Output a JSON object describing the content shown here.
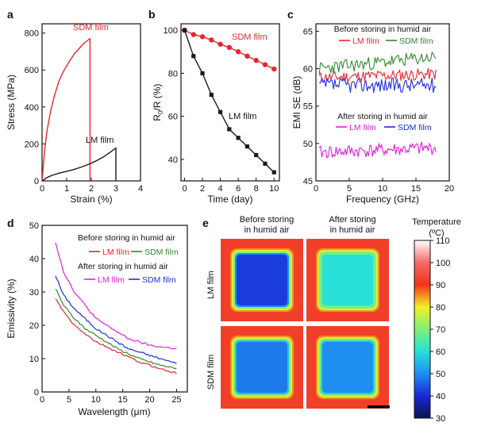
{
  "figure": {
    "panels": [
      "a",
      "b",
      "c",
      "d",
      "e"
    ]
  },
  "chart_data": [
    {
      "id": "a",
      "type": "line",
      "xlabel": "Strain (%)",
      "ylabel": "Stress (MPa)",
      "xlim": [
        0,
        4
      ],
      "ylim": [
        0,
        850
      ],
      "xticks": [
        0,
        1,
        2,
        3,
        4
      ],
      "yticks": [
        0,
        200,
        400,
        600,
        800
      ],
      "series": [
        {
          "name": "SDM film",
          "color": "#e8262b",
          "x": [
            0,
            0.1,
            0.2,
            0.35,
            0.5,
            0.7,
            0.9,
            1.1,
            1.3,
            1.5,
            1.7,
            1.85,
            1.95,
            1.95
          ],
          "y": [
            0,
            160,
            270,
            380,
            460,
            545,
            600,
            645,
            685,
            715,
            745,
            760,
            770,
            0
          ]
        },
        {
          "name": "LM film",
          "color": "#1a1a1a",
          "x": [
            0,
            0.2,
            0.4,
            0.7,
            1.0,
            1.3,
            1.6,
            1.9,
            2.2,
            2.5,
            2.8,
            3.0,
            3.0
          ],
          "y": [
            0,
            18,
            30,
            42,
            52,
            62,
            75,
            90,
            108,
            130,
            158,
            178,
            0
          ]
        }
      ]
    },
    {
      "id": "b",
      "type": "line",
      "xlabel": "Time (day)",
      "ylabel": "R0/R (%)",
      "ylabel_main": "R",
      "ylabel_sub": "0",
      "ylabel_rest": "/R (%)",
      "xlim": [
        -0.4,
        10.6
      ],
      "ylim": [
        30,
        103
      ],
      "xticks": [
        0,
        2,
        4,
        6,
        8,
        10
      ],
      "yticks": [
        40,
        60,
        80,
        100
      ],
      "series": [
        {
          "name": "SDM film",
          "color": "#e8262b",
          "marker": "circle",
          "x": [
            0,
            1,
            2,
            3,
            4,
            5,
            6,
            7,
            8,
            9,
            10
          ],
          "y": [
            100,
            98,
            97,
            95.5,
            93.5,
            92,
            90,
            88,
            86,
            84,
            82
          ]
        },
        {
          "name": "LM film",
          "color": "#1a1a1a",
          "marker": "square",
          "x": [
            0,
            1,
            2,
            3,
            4,
            5,
            6,
            7,
            8,
            9,
            10
          ],
          "y": [
            100,
            88,
            80,
            70,
            62,
            54,
            50,
            46,
            42,
            38,
            34
          ]
        }
      ]
    },
    {
      "id": "c",
      "type": "line",
      "xlabel": "Frequency (GHz)",
      "ylabel": "EMI SE (dB)",
      "xlim": [
        0,
        20
      ],
      "ylim": [
        45,
        66
      ],
      "xticks": [
        0,
        5,
        10,
        15,
        20
      ],
      "yticks": [
        45,
        50,
        55,
        60,
        65
      ],
      "annotations": [
        "Before storing in humid air",
        "After storing in humid air"
      ],
      "legend_before": [
        "LM film",
        "SDM film"
      ],
      "legend_after": [
        "LM film",
        "SDM film"
      ],
      "series": [
        {
          "name": "LM film",
          "group": "before",
          "color": "#e8262b",
          "mean": 58.8,
          "trend": 0.5,
          "noise": 0.8,
          "seed": 11
        },
        {
          "name": "SDM film",
          "group": "before",
          "color": "#2e8b2e",
          "mean": 60.0,
          "trend": 1.6,
          "noise": 0.9,
          "seed": 23
        },
        {
          "name": "SDM film",
          "group": "before",
          "color": "#1f2ee0",
          "mean": 57.8,
          "trend": 0.0,
          "noise": 1.0,
          "seed": 37
        },
        {
          "name": "LM film",
          "group": "after",
          "color": "#e020e0",
          "mean": 48.8,
          "trend": 0.6,
          "noise": 0.9,
          "seed": 41
        }
      ],
      "freq_range": [
        0.5,
        18
      ]
    },
    {
      "id": "d",
      "type": "line",
      "xlabel": "Wavelength (μm)",
      "ylabel": "Emissivity (%)",
      "xlim": [
        0,
        27
      ],
      "ylim": [
        0,
        50
      ],
      "xticks": [
        0,
        5,
        10,
        15,
        20,
        25
      ],
      "yticks": [
        0,
        10,
        20,
        30,
        40,
        50
      ],
      "annotations": [
        "Before storing in humid air",
        "After storing in humid air"
      ],
      "legend_before": [
        "LM film",
        "SDM film"
      ],
      "legend_after": [
        "LM film",
        "SDM film"
      ],
      "series": [
        {
          "name": "LM film",
          "group": "after",
          "color": "#e020e0",
          "x": [
            2.5,
            4,
            6,
            8,
            10,
            12,
            14,
            16,
            18,
            20,
            22,
            25
          ],
          "y": [
            45,
            36,
            30,
            26,
            22,
            20,
            18,
            16,
            15,
            14,
            13.5,
            13
          ]
        },
        {
          "name": "SDM film",
          "group": "after",
          "color": "#1f2ee0",
          "x": [
            2.5,
            4,
            6,
            8,
            10,
            12,
            14,
            16,
            18,
            20,
            22,
            25
          ],
          "y": [
            35,
            29,
            25,
            22,
            19,
            17,
            15,
            13,
            12,
            11,
            10,
            8.5
          ]
        },
        {
          "name": "SDM film",
          "group": "before",
          "color": "#2e8b2e",
          "x": [
            2.5,
            4,
            6,
            8,
            10,
            12,
            14,
            16,
            18,
            20,
            22,
            25
          ],
          "y": [
            31,
            26,
            22,
            19,
            17,
            15,
            13,
            11.5,
            10,
            9,
            8,
            7
          ]
        },
        {
          "name": "LM film",
          "group": "before",
          "color": "#e8262b",
          "x": [
            2.5,
            4,
            6,
            8,
            10,
            12,
            14,
            16,
            18,
            20,
            22,
            25
          ],
          "y": [
            28,
            24,
            20,
            17.5,
            15,
            13.5,
            12,
            10.5,
            9,
            8,
            7,
            5.5
          ]
        }
      ]
    },
    {
      "id": "e",
      "type": "heatmap",
      "column_labels": [
        "Before storing in humid air",
        "After storing in humid air"
      ],
      "row_labels": [
        "LM film",
        "SDM film"
      ],
      "colorbar_title": "Temperature (ºC)",
      "colorbar_range": [
        30,
        110
      ],
      "colorbar_ticks": [
        30,
        40,
        50,
        60,
        70,
        80,
        90,
        100,
        110
      ],
      "background_temperature": 92,
      "center_temperatures": [
        [
          42,
          60
        ],
        [
          48,
          50
        ]
      ]
    }
  ]
}
